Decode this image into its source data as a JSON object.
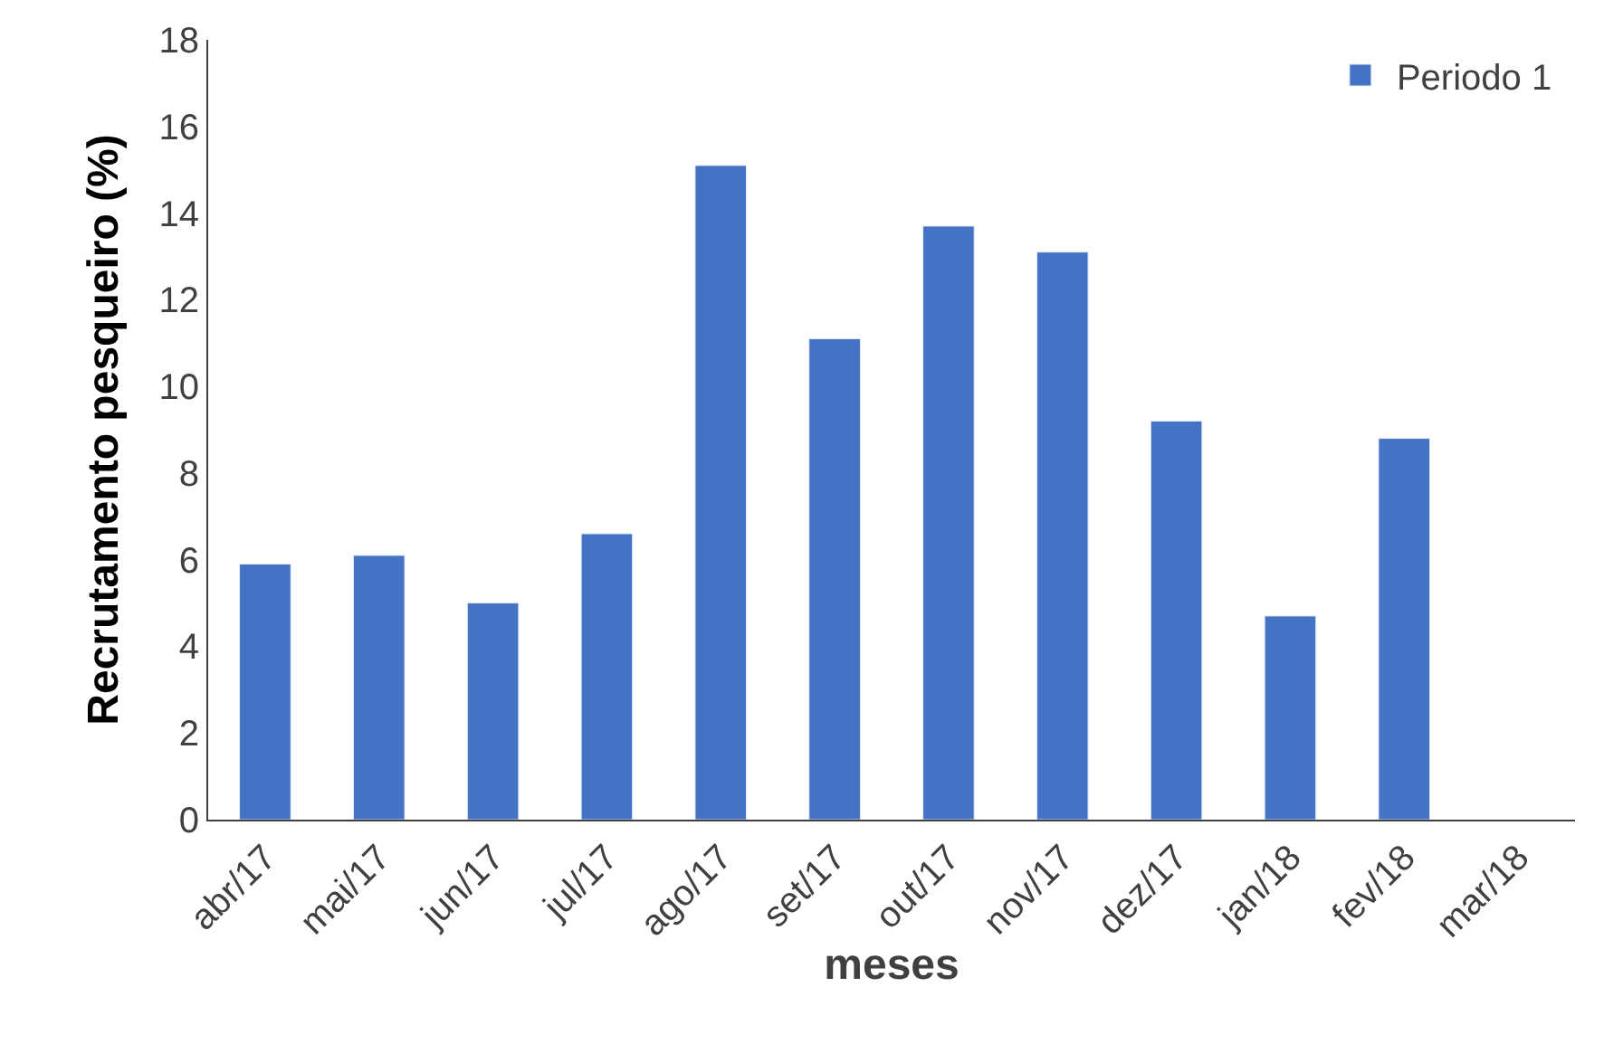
{
  "chart_data": {
    "type": "bar",
    "xlabel": "meses",
    "ylabel": "Recrutamento pesqueiro (%)",
    "categories": [
      "abr/17",
      "mai/17",
      "jun/17",
      "jul/17",
      "ago/17",
      "set/17",
      "out/17",
      "nov/17",
      "dez/17",
      "jan/18",
      "fev/18",
      "mar/18"
    ],
    "series": [
      {
        "name": "Periodo 1",
        "color": "#4472c4",
        "values": [
          5.9,
          6.1,
          5.0,
          6.6,
          15.1,
          11.1,
          13.7,
          13.1,
          9.2,
          4.7,
          8.8,
          null
        ]
      }
    ],
    "ylim": [
      0,
      18
    ],
    "yticks": [
      0,
      2,
      4,
      6,
      8,
      10,
      12,
      14,
      16,
      18
    ],
    "legend": "top right"
  }
}
